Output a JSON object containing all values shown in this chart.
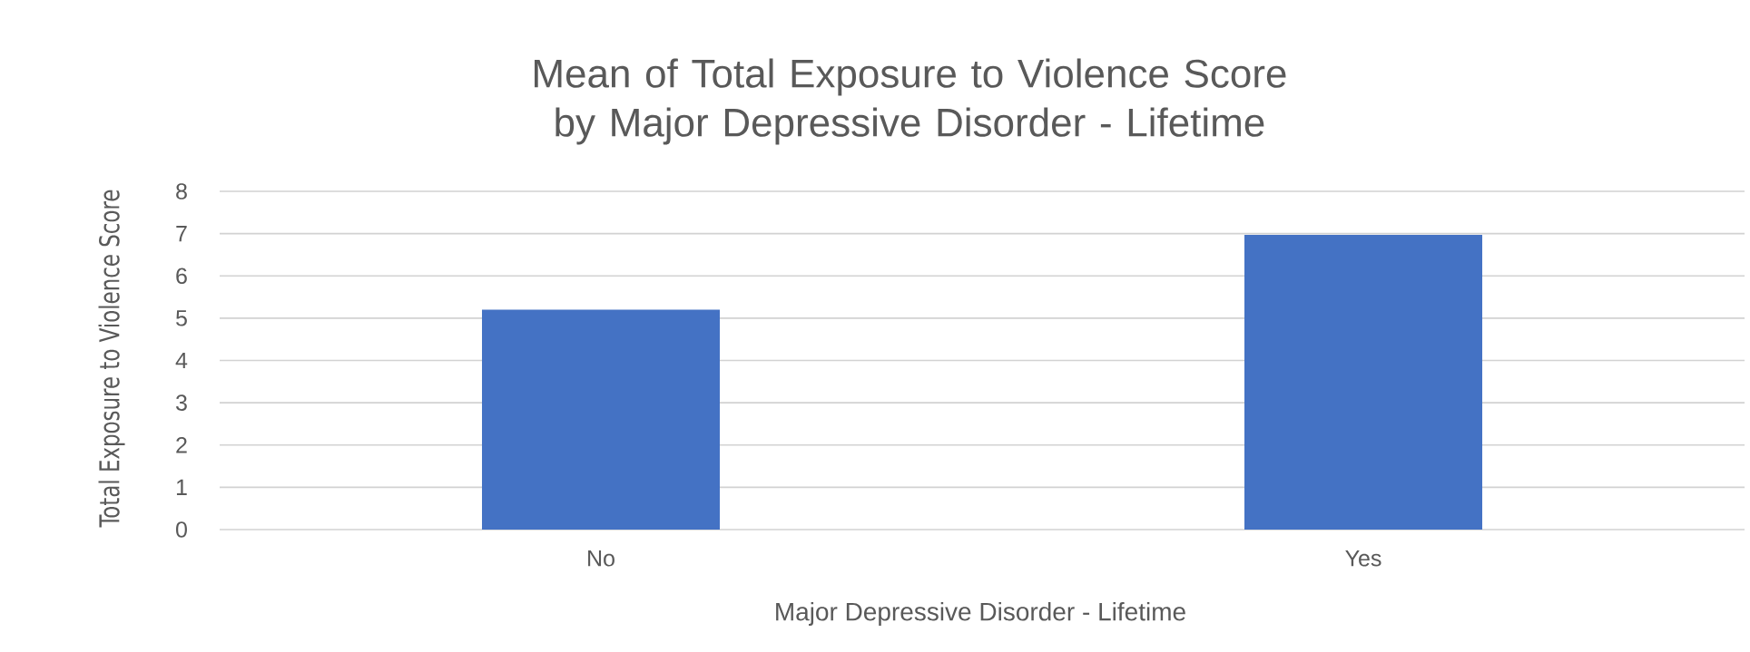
{
  "chart_data": {
    "type": "bar",
    "title": "Mean of Total Exposure to Violence Score by Major Depressive Disorder - Lifetime",
    "xlabel": "Major Depressive Disorder - Lifetime",
    "ylabel": "Total Exposure to Violence Score",
    "categories": [
      "No",
      "Yes"
    ],
    "values": [
      5.2,
      6.97
    ],
    "color": "#4472c4",
    "ylim": [
      0,
      8
    ],
    "yticks": [
      0,
      1,
      2,
      3,
      4,
      5,
      6,
      7,
      8
    ],
    "grid": "y"
  }
}
